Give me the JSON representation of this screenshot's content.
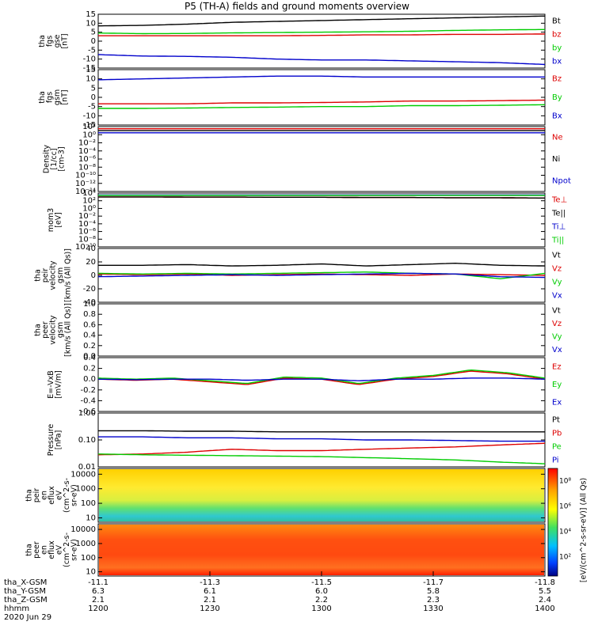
{
  "title": "P5 (TH-A) fields and ground moments overview",
  "chart_data": [
    {
      "type": "line",
      "ylabel": [
        "tha",
        "fgs",
        "gse",
        "[nT]"
      ],
      "ylim": [
        -15,
        15
      ],
      "yticks": [
        {
          "v": 15,
          "label": "15"
        },
        {
          "v": 10,
          "label": "10"
        },
        {
          "v": 5,
          "label": "5"
        },
        {
          "v": 0,
          "label": "0"
        },
        {
          "v": -5,
          "label": "-5"
        },
        {
          "v": -10,
          "label": "-10"
        },
        {
          "v": -15,
          "label": "-15"
        }
      ],
      "series": [
        {
          "name": "Bt",
          "color": "#000000",
          "values": [
            8.5,
            8.8,
            9.5,
            10.5,
            11,
            11.5,
            12,
            12.5,
            13,
            13.5,
            14
          ]
        },
        {
          "name": "bz",
          "color": "#dd0000",
          "values": [
            3,
            3,
            3,
            3,
            3,
            3.2,
            3.5,
            3.5,
            3.8,
            3.8,
            4
          ]
        },
        {
          "name": "by",
          "color": "#00cc00",
          "values": [
            4.5,
            4.2,
            4.3,
            4.6,
            4.8,
            5,
            5.2,
            5.5,
            6,
            6.3,
            6.5
          ]
        },
        {
          "name": "bx",
          "color": "#0000cc",
          "values": [
            -7.5,
            -8.3,
            -8.5,
            -9,
            -10,
            -10.5,
            -10.5,
            -11,
            -11.5,
            -12,
            -13
          ]
        }
      ]
    },
    {
      "type": "line",
      "ylabel": [
        "tha",
        "fgs",
        "gsm",
        "[nT]"
      ],
      "ylim": [
        -15,
        15
      ],
      "yticks": [
        {
          "v": 15,
          "label": "15"
        },
        {
          "v": 10,
          "label": "10"
        },
        {
          "v": 5,
          "label": "5"
        },
        {
          "v": 0,
          "label": "0"
        },
        {
          "v": -5,
          "label": "-5"
        },
        {
          "v": -10,
          "label": "-10"
        },
        {
          "v": -15,
          "label": "-15"
        }
      ],
      "series": [
        {
          "name": "Bz",
          "color": "#dd0000",
          "values": [
            -3.5,
            -3.5,
            -3.5,
            -3,
            -3,
            -2.8,
            -2.5,
            -2,
            -2,
            -1.8,
            -1.5
          ]
        },
        {
          "name": "By",
          "color": "#00cc00",
          "values": [
            -6,
            -6,
            -5.8,
            -5.5,
            -5.3,
            -5,
            -5,
            -4.5,
            -4.5,
            -4.3,
            -4
          ]
        },
        {
          "name": "Bx",
          "color": "#0000cc",
          "values": [
            9.5,
            10,
            10.5,
            11,
            11.5,
            11.5,
            11,
            11,
            11,
            11,
            11
          ]
        }
      ]
    },
    {
      "type": "line",
      "ylabel": [
        "Density",
        "[1/cc]",
        "[cm-3]"
      ],
      "log": true,
      "ylim": [
        1e-14,
        100.0
      ],
      "yticks": [
        {
          "v": 100,
          "label": "10²"
        },
        {
          "v": 1,
          "label": "10⁰"
        },
        {
          "v": 0.01,
          "label": "10⁻²"
        },
        {
          "v": 0.0001,
          "label": "10⁻⁴"
        },
        {
          "v": 1e-06,
          "label": "10⁻⁶"
        },
        {
          "v": 1e-08,
          "label": "10⁻⁸"
        },
        {
          "v": 1e-10,
          "label": "10⁻¹⁰"
        },
        {
          "v": 1e-12,
          "label": "10⁻¹²"
        },
        {
          "v": 1e-14,
          "label": "10⁻¹⁴"
        }
      ],
      "series": [
        {
          "name": "Ne",
          "color": "#dd0000",
          "values": [
            30,
            30,
            30,
            30,
            30,
            30,
            30,
            30,
            30,
            30,
            30
          ]
        },
        {
          "name": "Ni",
          "color": "#000000",
          "values": [
            10,
            10,
            10,
            10,
            10,
            10,
            10,
            10,
            10,
            10,
            10
          ]
        },
        {
          "name": "Npot",
          "color": "#0000cc",
          "values": [
            3,
            3,
            3,
            3,
            3,
            3,
            3,
            3,
            3,
            3,
            3
          ]
        }
      ]
    },
    {
      "type": "line",
      "ylabel": [
        "mom3",
        "[eV]"
      ],
      "log": true,
      "ylim": [
        1e-10,
        10000.0
      ],
      "yticks": [
        {
          "v": 10000,
          "label": "10⁴"
        },
        {
          "v": 100,
          "label": "10²"
        },
        {
          "v": 1,
          "label": "10⁰"
        },
        {
          "v": 0.01,
          "label": "10⁻²"
        },
        {
          "v": 0.0001,
          "label": "10⁻⁴"
        },
        {
          "v": 1e-06,
          "label": "10⁻⁶"
        },
        {
          "v": 1e-08,
          "label": "10⁻⁸"
        },
        {
          "v": 1e-10,
          "label": "10⁻¹⁰"
        }
      ],
      "series": [
        {
          "name": "Te⊥",
          "color": "#dd0000",
          "values": [
            1000,
            1000,
            900,
            900,
            800,
            800,
            700,
            700,
            600,
            600,
            500
          ]
        },
        {
          "name": "Te||",
          "color": "#000000",
          "values": [
            1000,
            1000,
            900,
            900,
            800,
            800,
            700,
            700,
            600,
            600,
            500
          ]
        },
        {
          "name": "Ti⊥",
          "color": "#0000cc",
          "values": [
            3000,
            3000,
            3000,
            3000,
            3000,
            3000,
            3000,
            3000,
            3000,
            3000,
            3000
          ]
        },
        {
          "name": "Ti||",
          "color": "#00cc00",
          "values": [
            2500,
            2500,
            2500,
            2500,
            2500,
            2500,
            2500,
            2500,
            2500,
            2500,
            2500
          ]
        }
      ]
    },
    {
      "type": "line",
      "ylabel": [
        "tha",
        "peir",
        "velocity",
        "gsm",
        "[km/s (All Qs)]"
      ],
      "ylim": [
        -40,
        40
      ],
      "yticks": [
        {
          "v": 40,
          "label": "40"
        },
        {
          "v": 20,
          "label": "20"
        },
        {
          "v": 0,
          "label": "0"
        },
        {
          "v": -20,
          "label": "-20"
        },
        {
          "v": -40,
          "label": "-40"
        }
      ],
      "series": [
        {
          "name": "Vt",
          "color": "#000000",
          "values": [
            15,
            15,
            16,
            14,
            15,
            17,
            14,
            16,
            18,
            15,
            14
          ]
        },
        {
          "name": "Vz",
          "color": "#dd0000",
          "values": [
            2,
            1,
            2,
            0,
            1,
            2,
            1,
            0,
            2,
            1,
            0
          ]
        },
        {
          "name": "Vy",
          "color": "#00cc00",
          "values": [
            3,
            2,
            3,
            2,
            3,
            4,
            5,
            3,
            2,
            -5,
            3
          ]
        },
        {
          "name": "Vx",
          "color": "#0000cc",
          "values": [
            -2,
            -1,
            0,
            1,
            0,
            1,
            2,
            3,
            2,
            -2,
            -3
          ]
        }
      ]
    },
    {
      "type": "line",
      "ylabel": [
        "tha",
        "peer",
        "velocity",
        "gsm",
        "[km/s (All Qs)]"
      ],
      "ylim": [
        0,
        1
      ],
      "yticks": [
        {
          "v": 1,
          "label": "1.0"
        },
        {
          "v": 0.8,
          "label": "0.8"
        },
        {
          "v": 0.6,
          "label": "0.6"
        },
        {
          "v": 0.4,
          "label": "0.4"
        },
        {
          "v": 0.2,
          "label": "0.2"
        },
        {
          "v": 0,
          "label": "0.0"
        }
      ],
      "series": [
        {
          "name": "Vt",
          "color": "#000000",
          "values": []
        },
        {
          "name": "Vz",
          "color": "#dd0000",
          "values": []
        },
        {
          "name": "Vy",
          "color": "#00cc00",
          "values": []
        },
        {
          "name": "Vx",
          "color": "#0000cc",
          "values": []
        }
      ]
    },
    {
      "type": "line",
      "ylabel": [
        "E=-VxB",
        "[mV/m]"
      ],
      "ylim": [
        -0.6,
        0.4
      ],
      "yticks": [
        {
          "v": 0.4,
          "label": "0.4"
        },
        {
          "v": 0.2,
          "label": "0.2"
        },
        {
          "v": 0,
          "label": "0.0"
        },
        {
          "v": -0.2,
          "label": "-0.2"
        },
        {
          "v": -0.4,
          "label": "-0.4"
        },
        {
          "v": -0.6,
          "label": "-0.6"
        }
      ],
      "series": [
        {
          "name": "Ez",
          "color": "#dd0000",
          "values": [
            0,
            -0.02,
            0,
            -0.05,
            -0.1,
            0.02,
            0,
            -0.1,
            0,
            0.05,
            0.15,
            0.1,
            0
          ]
        },
        {
          "name": "Ey",
          "color": "#00cc00",
          "values": [
            0.02,
            0,
            0.02,
            -0.03,
            -0.08,
            0.04,
            0.02,
            -0.08,
            0.02,
            0.07,
            0.17,
            0.12,
            0.02
          ]
        },
        {
          "name": "Ex",
          "color": "#0000cc",
          "values": [
            0,
            -0.01,
            0,
            0,
            -0.02,
            0,
            0,
            -0.03,
            0,
            0,
            0.02,
            0.02,
            0
          ]
        }
      ]
    },
    {
      "type": "line",
      "ylabel": [
        "Pressure",
        "[nPa]"
      ],
      "log": true,
      "ylim": [
        0.01,
        1
      ],
      "yticks": [
        {
          "v": 1,
          "label": "1.00"
        },
        {
          "v": 0.1,
          "label": "0.10"
        },
        {
          "v": 0.01,
          "label": "0.01"
        }
      ],
      "series": [
        {
          "name": "Pt",
          "color": "#000000",
          "values": [
            0.22,
            0.22,
            0.21,
            0.21,
            0.2,
            0.2,
            0.2,
            0.2,
            0.2,
            0.2,
            0.2
          ]
        },
        {
          "name": "Pb",
          "color": "#dd0000",
          "values": [
            0.028,
            0.03,
            0.035,
            0.045,
            0.04,
            0.04,
            0.045,
            0.05,
            0.055,
            0.065,
            0.075
          ]
        },
        {
          "name": "Pe",
          "color": "#00cc00",
          "values": [
            0.03,
            0.028,
            0.027,
            0.026,
            0.025,
            0.024,
            0.022,
            0.02,
            0.018,
            0.015,
            0.013
          ]
        },
        {
          "name": "Pi",
          "color": "#0000cc",
          "values": [
            0.13,
            0.13,
            0.12,
            0.12,
            0.11,
            0.11,
            0.1,
            0.1,
            0.095,
            0.09,
            0.09
          ]
        }
      ]
    },
    {
      "type": "heatmap",
      "ylabel": [
        "tha",
        "peir",
        "en",
        "eflux",
        "eV",
        "(cm^2-s-",
        "sr-eV)"
      ],
      "log": true,
      "ylim": [
        5,
        25000
      ],
      "yticks": [
        {
          "v": 10000,
          "label": "10000"
        },
        {
          "v": 1000,
          "label": "1000"
        },
        {
          "v": 100,
          "label": "100"
        },
        {
          "v": 10,
          "label": "10"
        }
      ],
      "colorbar_labels": [
        "10⁸",
        "10⁶",
        "10⁴",
        "10²"
      ]
    },
    {
      "type": "heatmap",
      "ylabel": [
        "tha",
        "peer",
        "en",
        "eflux",
        "eV",
        "(cm^2-s-",
        "sr-eV)"
      ],
      "log": true,
      "ylim": [
        5,
        25000
      ],
      "yticks": [
        {
          "v": 10000,
          "label": "10000"
        },
        {
          "v": 1000,
          "label": "1000"
        },
        {
          "v": 100,
          "label": "100"
        },
        {
          "v": 10,
          "label": "10"
        }
      ],
      "colorbar_labels": [
        "10⁸",
        "10⁶",
        "10⁴",
        "10²"
      ]
    }
  ],
  "colorbar_title": "[eV/(cm^2-s-sr-eV)] (All Qs)",
  "x_axis": {
    "rows": [
      {
        "label": "tha_X-GSM",
        "values": [
          "-11.1",
          "-11.3",
          "-11.5",
          "-11.7",
          "-11.8"
        ]
      },
      {
        "label": "tha_Y-GSM",
        "values": [
          "6.3",
          "6.1",
          "6.0",
          "5.8",
          "5.5"
        ]
      },
      {
        "label": "tha_Z-GSM",
        "values": [
          "2.1",
          "2.1",
          "2.2",
          "2.3",
          "2.4"
        ]
      },
      {
        "label": "hhmm",
        "values": [
          "1200",
          "1230",
          "1300",
          "1330",
          "1400"
        ]
      }
    ],
    "date": "2020 Jun 29"
  }
}
